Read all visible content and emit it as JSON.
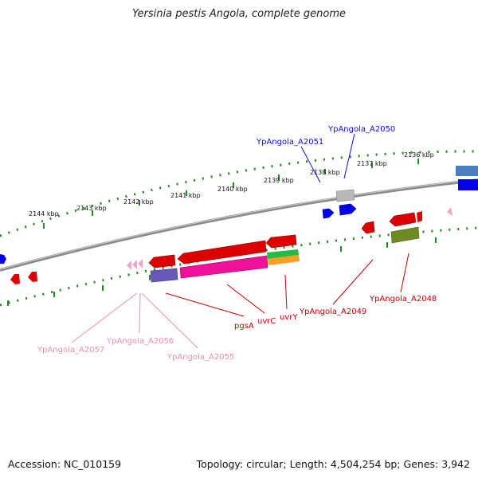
{
  "title": "Yersinia pestis Angola, complete genome",
  "footer": {
    "accession": "Accession: NC_010159",
    "summary": "Topology: circular; Length: 4,504,254 bp; Genes: 3,942"
  },
  "colors": {
    "backbone": "#7f7f7f",
    "ticks": "#1f8a1f",
    "forward_label": "#1010c8",
    "reverse_label": "#cc0000",
    "pink_label": "#e88fb4"
  },
  "scale": {
    "ticks": [
      {
        "label": "2144 kbp"
      },
      {
        "label": "2143 kbp"
      },
      {
        "label": "2142 kbp"
      },
      {
        "label": "2141 kbp"
      },
      {
        "label": "2140 kbp"
      },
      {
        "label": "2139 kbp"
      },
      {
        "label": "2138 kbp"
      },
      {
        "label": "2137 kbp"
      },
      {
        "label": "2136 kbp"
      }
    ]
  },
  "gene_labels": {
    "a2050": "YpAngola_A2050",
    "a2051": "YpAngola_A2051",
    "pgsA": "pgsA",
    "uvrC": "uvrC",
    "uvrY": "uvrY",
    "a2049": "YpAngola_A2049",
    "a2048": "YpAngola_A2048",
    "a2057": "YpAngola_A2057",
    "a2056": "YpAngola_A2056",
    "a2055": "YpAngola_A2055"
  }
}
